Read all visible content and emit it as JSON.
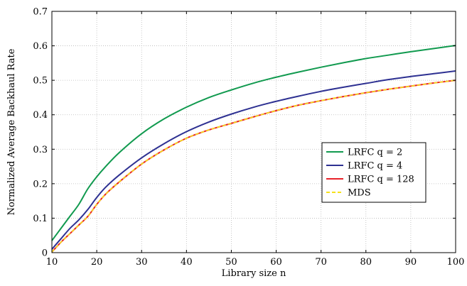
{
  "chart_data": {
    "type": "line",
    "xlabel": "Library size n",
    "ylabel": "Normalized Average Backhaul Rate",
    "xlim": [
      10,
      100
    ],
    "ylim": [
      0,
      0.7
    ],
    "xticks": [
      10,
      20,
      30,
      40,
      50,
      60,
      70,
      80,
      90,
      100
    ],
    "yticks": [
      0,
      0.1,
      0.2,
      0.3,
      0.4,
      0.5,
      0.6,
      0.7
    ],
    "grid": true,
    "legend_position": "center-right",
    "x": [
      10,
      12,
      14,
      16,
      18,
      20,
      22,
      25,
      30,
      35,
      40,
      45,
      50,
      55,
      60,
      65,
      70,
      75,
      80,
      85,
      90,
      95,
      100
    ],
    "series": [
      {
        "name": "LRFC q = 2",
        "color": "#119a4f",
        "dash": "solid",
        "values": [
          0.035,
          0.07,
          0.105,
          0.14,
          0.185,
          0.22,
          0.25,
          0.29,
          0.345,
          0.388,
          0.422,
          0.45,
          0.472,
          0.492,
          0.509,
          0.524,
          0.538,
          0.551,
          0.563,
          0.573,
          0.583,
          0.592,
          0.601
        ]
      },
      {
        "name": "LRFC q = 4",
        "color": "#2e3192",
        "dash": "solid",
        "values": [
          0.01,
          0.04,
          0.07,
          0.095,
          0.125,
          0.16,
          0.19,
          0.225,
          0.275,
          0.316,
          0.351,
          0.379,
          0.402,
          0.422,
          0.439,
          0.454,
          0.468,
          0.48,
          0.491,
          0.502,
          0.511,
          0.519,
          0.527
        ]
      },
      {
        "name": "LRFC q = 128",
        "color": "#e8222a",
        "dash": "solid",
        "values": [
          0.002,
          0.03,
          0.055,
          0.08,
          0.105,
          0.14,
          0.17,
          0.205,
          0.257,
          0.298,
          0.332,
          0.356,
          0.375,
          0.394,
          0.412,
          0.428,
          0.441,
          0.453,
          0.464,
          0.474,
          0.483,
          0.492,
          0.5
        ]
      },
      {
        "name": "MDS",
        "color": "#f5e11a",
        "dash": "dashed",
        "values": [
          0.002,
          0.03,
          0.055,
          0.08,
          0.105,
          0.14,
          0.17,
          0.205,
          0.257,
          0.298,
          0.332,
          0.356,
          0.375,
          0.394,
          0.412,
          0.428,
          0.441,
          0.453,
          0.464,
          0.474,
          0.483,
          0.492,
          0.5
        ]
      }
    ]
  }
}
